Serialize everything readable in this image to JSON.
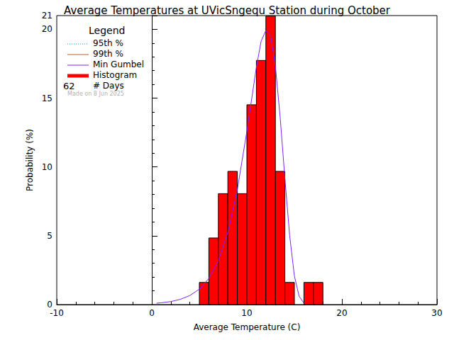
{
  "chart_data": {
    "type": "histogram",
    "title": "Average Temperatures at UVicSngequ Station during October",
    "x_label": "Average Temperature (C)",
    "y_label": "Probability (%)",
    "xlim": [
      -10,
      30
    ],
    "xticks": [
      -10,
      0,
      10,
      20,
      30
    ],
    "ylim": [
      0,
      21
    ],
    "yticks": [
      0,
      5,
      10,
      15,
      20
    ],
    "grid": false,
    "legend": "upper left",
    "legend_title": "Legend",
    "days": 62,
    "days_label": "# Days",
    "note": "Made on 8 Jun 2025",
    "series": [
      {
        "name": "95th %",
        "type": "line",
        "color": "#00b4b4",
        "line_style": "dotted",
        "x": [],
        "values": []
      },
      {
        "name": "99th %",
        "type": "line",
        "color": "#b4642a",
        "line_style": "solid",
        "x": [],
        "values": []
      },
      {
        "name": "Min Gumbel",
        "type": "line",
        "color": "#7f1fff",
        "line_style": "solid",
        "x": [
          0.5,
          1,
          2,
          3,
          4,
          5,
          6,
          7,
          8,
          9,
          10,
          11,
          11.5,
          12,
          12.5,
          13,
          13.5,
          14,
          14.5,
          15,
          15.5,
          16
        ],
        "values": [
          0.1,
          0.13,
          0.22,
          0.38,
          0.66,
          1.12,
          1.9,
          3.19,
          5.25,
          8.36,
          12.59,
          17.24,
          19.14,
          19.92,
          19.54,
          17.34,
          13.64,
          9.17,
          5.03,
          2.08,
          0.6,
          0.11
        ]
      },
      {
        "name": "Histogram",
        "type": "histogram",
        "color": "#ff0000",
        "bins": [
          5,
          6,
          7,
          8,
          9,
          10,
          11,
          12,
          13,
          14,
          15,
          16,
          17,
          18
        ],
        "values": [
          1.61,
          4.84,
          8.06,
          9.68,
          8.06,
          14.52,
          17.74,
          20.97,
          9.68,
          1.61,
          0,
          1.61,
          1.61
        ]
      }
    ]
  }
}
